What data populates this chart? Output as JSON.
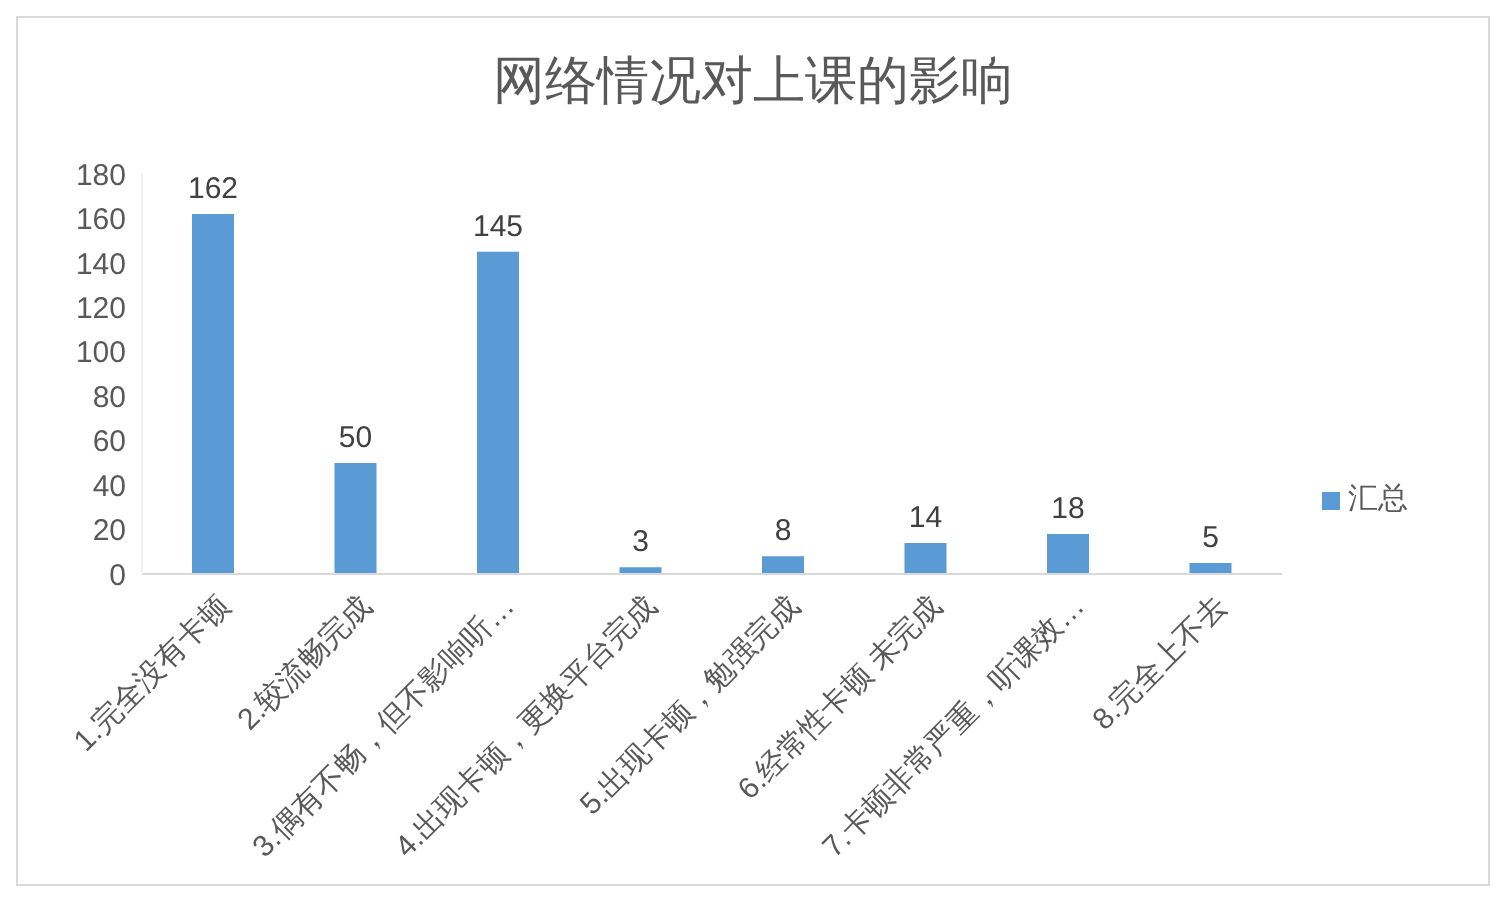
{
  "chart_data": {
    "type": "bar",
    "title": "网络情况对上课的影响",
    "categories": [
      "1.完全没有卡顿",
      "2.较流畅完成",
      "3.偶有不畅，但不影响听…",
      "4.出现卡顿，更换平台完成",
      "5.出现卡顿，勉强完成",
      "6.经常性卡顿 未完成",
      "7.卡顿非常严重，听课效…",
      "8.完全上不去"
    ],
    "series": [
      {
        "name": "汇总",
        "color": "#5b9bd5",
        "values": [
          162,
          50,
          145,
          3,
          8,
          14,
          18,
          5
        ]
      }
    ],
    "ylim": [
      0,
      180
    ],
    "yticks": [
      0,
      20,
      40,
      60,
      80,
      100,
      120,
      140,
      160,
      180
    ],
    "data_labels": true,
    "legend": "right"
  }
}
